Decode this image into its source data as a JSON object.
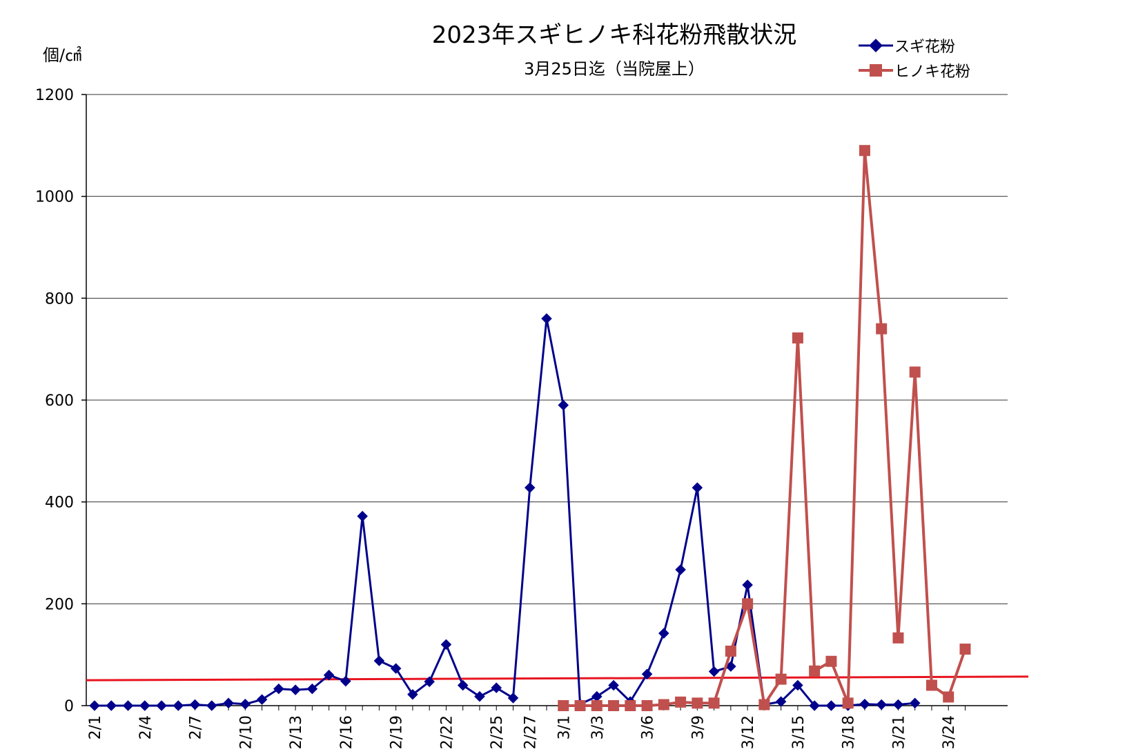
{
  "chart_data": {
    "type": "line",
    "title": "2023年スギヒノキ科花粉飛散状況",
    "subtitle": "3月25日迄（当院屋上）",
    "ylabel": "個/㎠",
    "xlabel": "",
    "ylim": [
      0,
      1200
    ],
    "yticks": [
      0,
      200,
      400,
      600,
      800,
      1000,
      1200
    ],
    "grid": true,
    "legend_position": "top-right",
    "x": [
      "2/1",
      "2/2",
      "2/3",
      "2/4",
      "2/5",
      "2/6",
      "2/7",
      "2/8",
      "2/9",
      "2/10",
      "2/11",
      "2/12",
      "2/13",
      "2/14",
      "2/15",
      "2/16",
      "2/17",
      "2/18",
      "2/19",
      "2/20",
      "2/21",
      "2/22",
      "2/23",
      "2/24",
      "2/25",
      "2/26",
      "2/27",
      "2/28",
      "3/1",
      "3/2",
      "3/3",
      "3/4",
      "3/5",
      "3/6",
      "3/7",
      "3/8",
      "3/9",
      "3/10",
      "3/11",
      "3/12",
      "3/13",
      "3/14",
      "3/15",
      "3/16",
      "3/17",
      "3/18",
      "3/19",
      "3/20",
      "3/21",
      "3/22",
      "3/23",
      "3/24",
      "3/25"
    ],
    "xtick_labels": [
      "2/1",
      "",
      "",
      "2/4",
      "",
      "",
      "2/7",
      "",
      "",
      "2/10",
      "",
      "",
      "2/13",
      "",
      "",
      "2/16",
      "",
      "",
      "2/19",
      "",
      "",
      "2/22",
      "",
      "",
      "2/25",
      "",
      "2/27",
      "",
      "3/1",
      "",
      "3/3",
      "",
      "",
      "3/6",
      "",
      "",
      "3/9",
      "",
      "",
      "3/12",
      "",
      "",
      "3/15",
      "",
      "",
      "3/18",
      "",
      "",
      "3/21",
      "",
      "",
      "3/24",
      ""
    ],
    "series": [
      {
        "name": "スギ花粉",
        "color": "#00008b",
        "marker": "diamond",
        "values": [
          0,
          0,
          0,
          0,
          0,
          0,
          2,
          0,
          5,
          3,
          12,
          33,
          31,
          33,
          60,
          48,
          372,
          88,
          73,
          22,
          47,
          120,
          40,
          18,
          35,
          15,
          428,
          760,
          590,
          3,
          18,
          40,
          8,
          62,
          142,
          267,
          428,
          67,
          77,
          237,
          2,
          8,
          40,
          0,
          0,
          0,
          3,
          2,
          2,
          5,
          null,
          null,
          null
        ]
      },
      {
        "name": "ヒノキ花粉",
        "color": "#c0504d",
        "marker": "square",
        "values": [
          null,
          null,
          null,
          null,
          null,
          null,
          null,
          null,
          null,
          null,
          null,
          null,
          null,
          null,
          null,
          null,
          null,
          null,
          null,
          null,
          null,
          null,
          null,
          null,
          null,
          null,
          null,
          null,
          0,
          0,
          0,
          0,
          0,
          0,
          2,
          7,
          5,
          5,
          107,
          200,
          2,
          52,
          722,
          68,
          87,
          5,
          1090,
          740,
          133,
          655,
          40,
          17,
          111
        ]
      }
    ],
    "reference_line": {
      "color": "#e8141f",
      "y_start": 50,
      "y_end": 57
    }
  }
}
